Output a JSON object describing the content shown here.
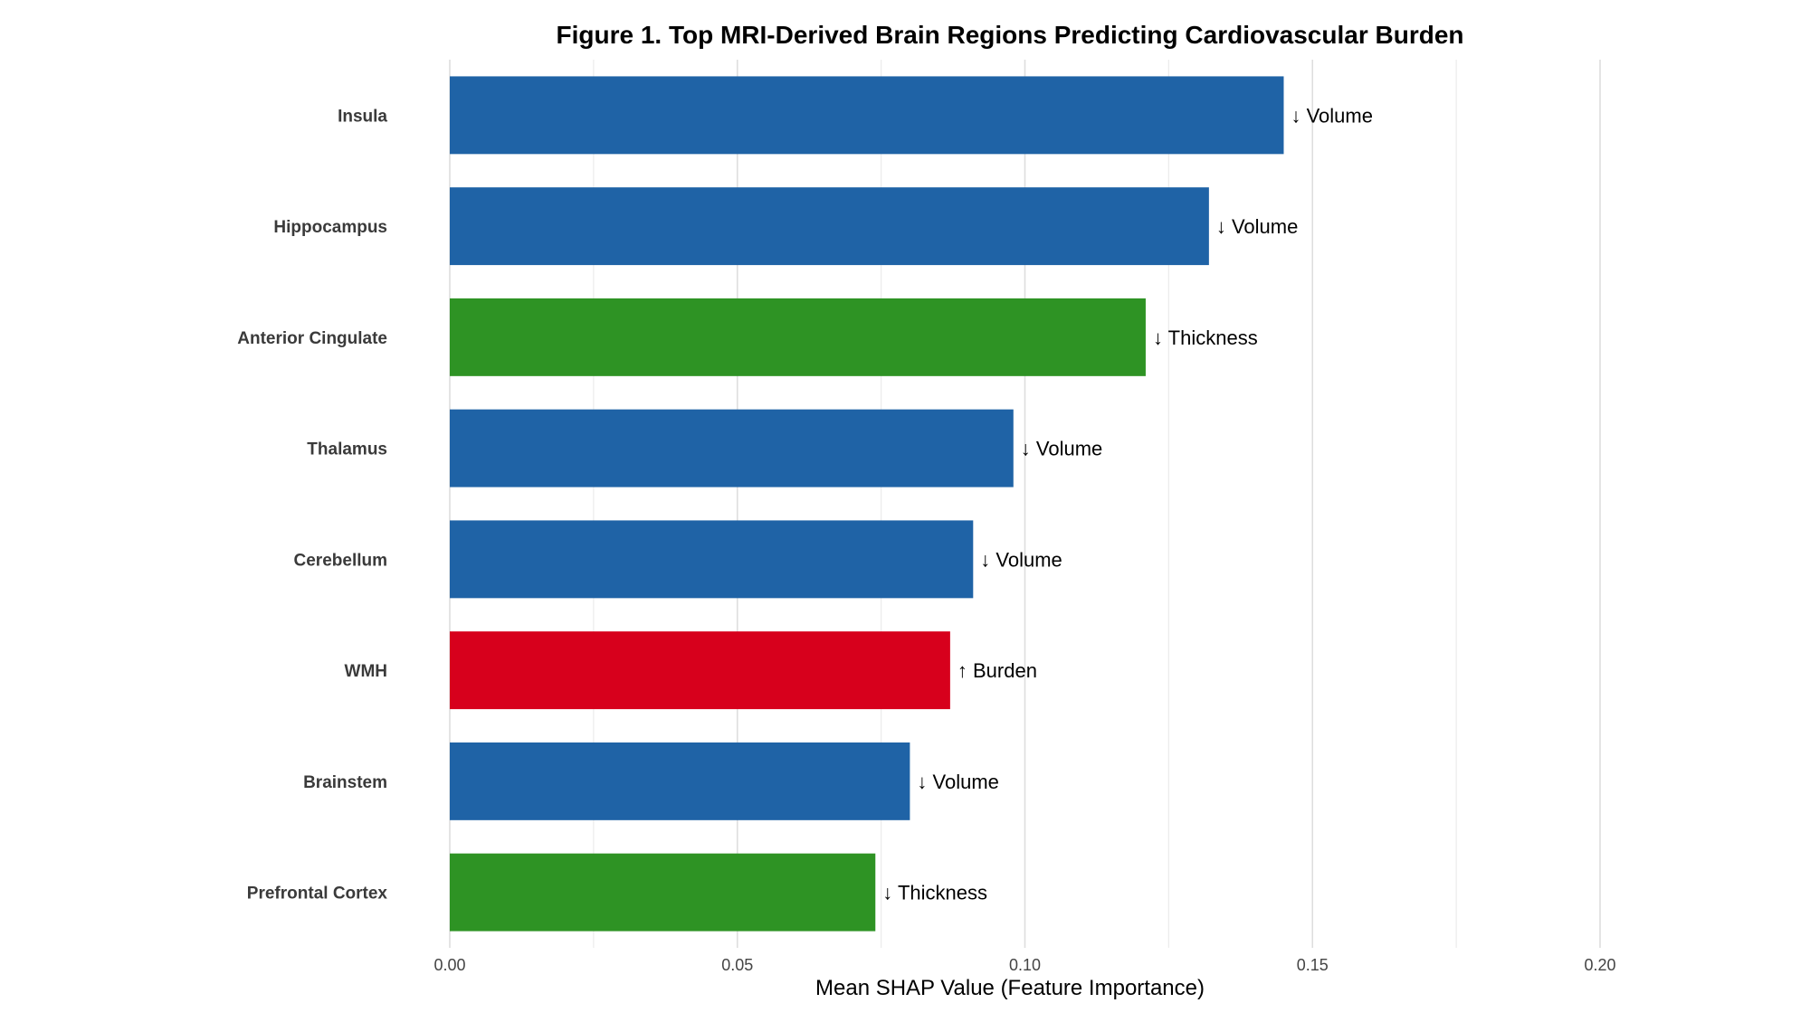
{
  "chart_data": {
    "type": "bar",
    "orientation": "horizontal",
    "title": "Figure 1. Top MRI-Derived Brain Regions Predicting Cardiovascular Burden",
    "xlabel": "Mean SHAP Value (Feature Importance)",
    "ylabel": "",
    "xlim": [
      0,
      0.2
    ],
    "xticks": [
      "0.00",
      "0.05",
      "0.10",
      "0.15",
      "0.20"
    ],
    "xtick_values": [
      0,
      0.05,
      0.1,
      0.15,
      0.2
    ],
    "grid": "vertical",
    "legend": "none",
    "categories": [
      "Insula",
      "Hippocampus",
      "Anterior Cingulate",
      "Thalamus",
      "Cerebellum",
      "WMH",
      "Brainstem",
      "Prefrontal Cortex"
    ],
    "values": [
      0.145,
      0.132,
      0.121,
      0.098,
      0.091,
      0.087,
      0.08,
      0.074
    ],
    "annotations": [
      "↓ Volume",
      "↓ Volume",
      "↓ Thickness",
      "↓ Volume",
      "↓ Volume",
      "↑ Burden",
      "↓ Volume",
      "↓ Thickness"
    ],
    "bar_colors": [
      "#1f63a6",
      "#1f63a6",
      "#2e9324",
      "#1f63a6",
      "#1f63a6",
      "#d7001c",
      "#1f63a6",
      "#2e9324"
    ]
  }
}
